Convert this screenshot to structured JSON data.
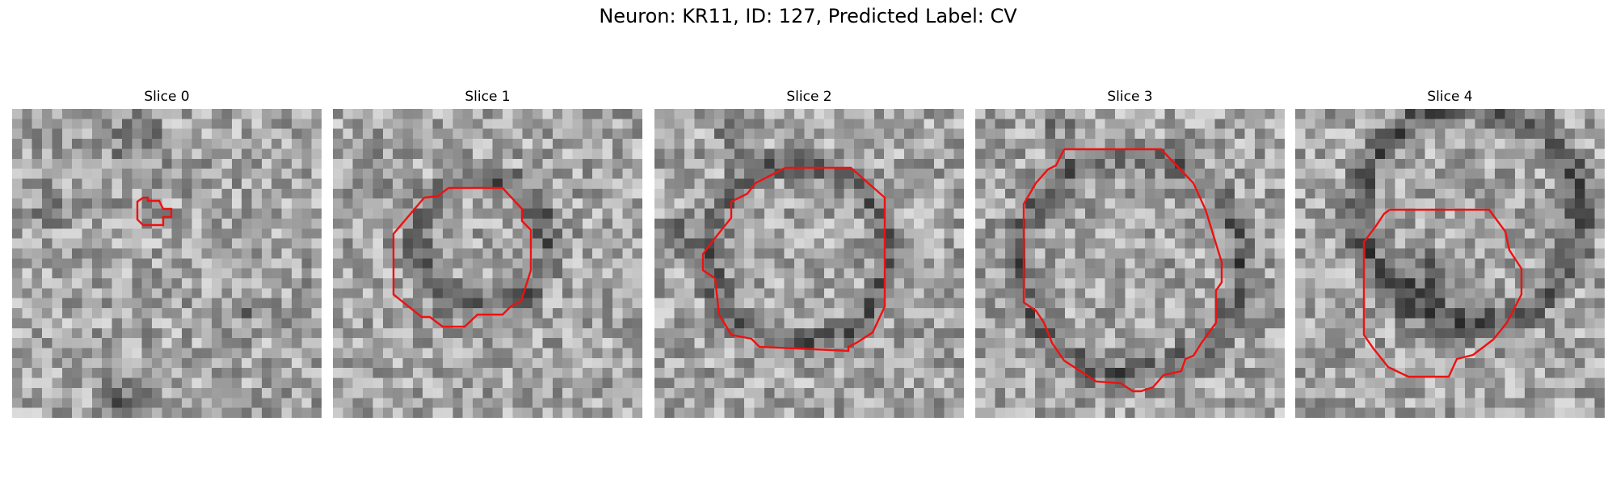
{
  "figure": {
    "title": "Neuron: KR11, ID: 127, Predicted Label: CV"
  },
  "panels": [
    {
      "title": "Slice 0"
    },
    {
      "title": "Slice 1"
    },
    {
      "title": "Slice 2"
    },
    {
      "title": "Slice 3"
    },
    {
      "title": "Slice 4"
    }
  ],
  "colors": {
    "contour": "#ee1111",
    "background": "#ffffff"
  }
}
